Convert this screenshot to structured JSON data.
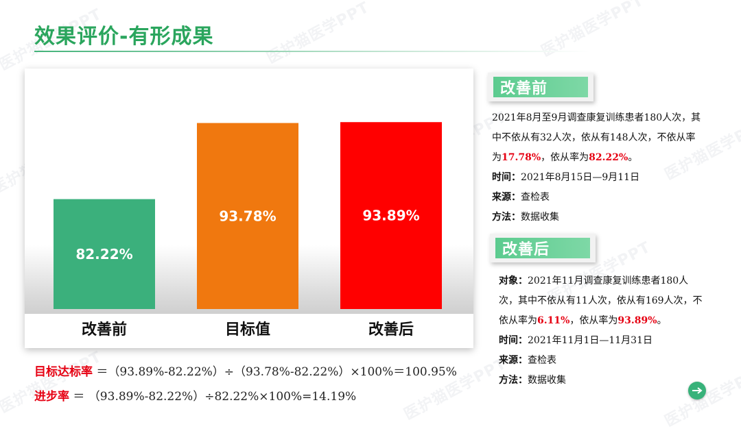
{
  "title": "效果评价-有形成果",
  "watermark": "医护猫医学PPT",
  "chart_data": {
    "type": "bar",
    "categories": [
      "改善前",
      "目标值",
      "改善后"
    ],
    "values": [
      82.22,
      93.78,
      93.89
    ],
    "value_labels": [
      "82.22%",
      "93.78%",
      "93.89%"
    ],
    "colors": [
      "#3bb07c",
      "#f0780f",
      "#ff0000"
    ],
    "ylim": [
      0,
      100
    ]
  },
  "before": {
    "tag": "改善前",
    "desc_pre": "2021年8月至9月调查康复训练患者180人次，其中不依从有32人次，依从有148人次，不依从率为",
    "noncompliance": "17.78%",
    "desc_mid": "，依从率为",
    "compliance": "82.22%",
    "desc_end": "。",
    "time_label": "时间",
    "time": "2021年8月15日—9月11日",
    "source_label": "来源",
    "source": "查检表",
    "method_label": "方法",
    "method": "数据收集"
  },
  "after": {
    "tag": "改善后",
    "subject_label": "对象",
    "desc_pre": "2021年11月调查康复训练患者180人次，其中不依从有11人次，依从有169人次，不依从率为",
    "noncompliance": "6.11%",
    "desc_mid": "，依从率为",
    "compliance": "93.89%",
    "desc_end": "。",
    "time_label": "时间",
    "time": "2021年11月1日—11月31日",
    "source_label": "来源",
    "source": "查检表",
    "method_label": "方法",
    "method": "数据收集"
  },
  "formulas": {
    "target_label": "目标达标率",
    "target_expr": "＝（93.89%-82.22%）÷（93.78%-82.22%）×100%＝100.95%",
    "progress_label": "进步率",
    "progress_expr": "＝ （93.89%-82.22%）÷82.22%×100%=14.19%"
  },
  "icons": {
    "next": "arrow-right-icon"
  }
}
